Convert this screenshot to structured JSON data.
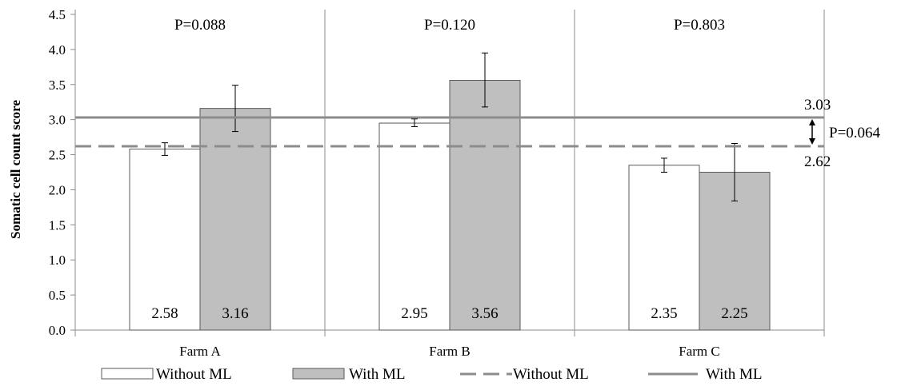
{
  "chart_data": {
    "type": "bar",
    "title": "",
    "xlabel": "",
    "ylabel": "Somatic cell count score",
    "ylim": [
      0,
      4.5
    ],
    "yticks": [
      "0.0",
      "0.5",
      "1.0",
      "1.5",
      "2.0",
      "2.5",
      "3.0",
      "3.5",
      "4.0",
      "4.5"
    ],
    "categories": [
      "Farm A",
      "Farm B",
      "Farm C"
    ],
    "group_p_values": [
      "P=0.088",
      "P=0.120",
      "P=0.803"
    ],
    "series": [
      {
        "name": "Without ML",
        "color": "#ffffff",
        "values": [
          2.58,
          2.95,
          2.35
        ],
        "value_labels": [
          "2.58",
          "2.95",
          "2.35"
        ],
        "error_low": [
          2.49,
          2.9,
          2.25
        ],
        "error_high": [
          2.67,
          3.01,
          2.45
        ]
      },
      {
        "name": "With ML",
        "color": "#bfbfbf",
        "values": [
          3.16,
          3.56,
          2.25
        ],
        "value_labels": [
          "3.16",
          "3.56",
          "2.25"
        ],
        "error_low": [
          2.83,
          3.18,
          1.84
        ],
        "error_high": [
          3.49,
          3.95,
          2.66
        ]
      }
    ],
    "reference_lines": [
      {
        "name": "Without ML",
        "value": 2.62,
        "label": "2.62",
        "style": "dashed",
        "color": "#8c8c8c"
      },
      {
        "name": "With ML",
        "value": 3.03,
        "label": "3.03",
        "style": "solid",
        "color": "#8c8c8c"
      }
    ],
    "reference_p_value": "P=0.064",
    "legend_position": "bottom",
    "grid": false
  }
}
